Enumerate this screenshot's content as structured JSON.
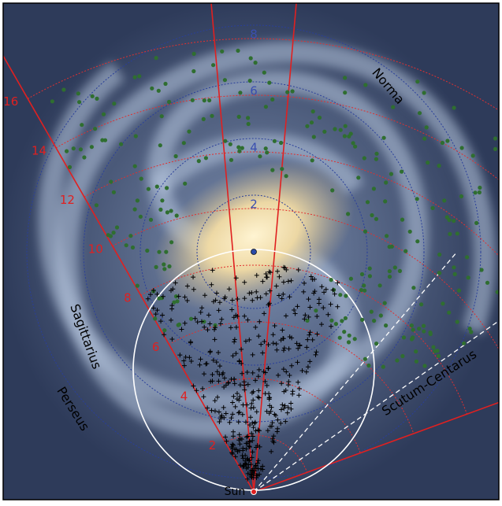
{
  "galactocentric_rings": [
    2,
    4,
    6,
    8
  ],
  "heliocentric_arcs": [
    2,
    4,
    6,
    8,
    10,
    12,
    14,
    16
  ],
  "arm_labels": {
    "norma": "Norma",
    "sagittarius": "Sagittarius",
    "perseus": "Perseus",
    "scutum_centaurus": "Scutum-Centarus"
  },
  "sun_label": "Sun"
}
